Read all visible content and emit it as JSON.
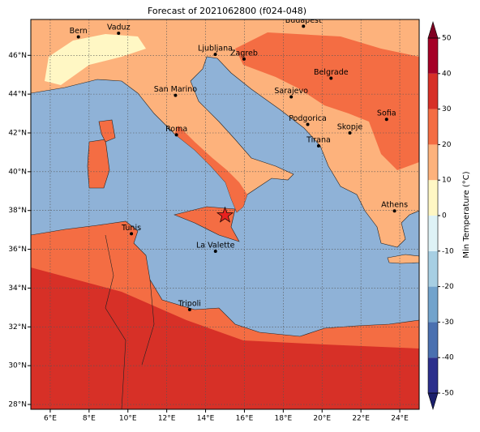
{
  "title": "Forecast of 2021062800 (f024-048)",
  "map": {
    "lon_range": [
      5,
      25
    ],
    "lat_range": [
      27.75,
      47.85
    ],
    "lon_ticks": [
      {
        "value": 6,
        "label": "6°E"
      },
      {
        "value": 8,
        "label": "8°E"
      },
      {
        "value": 10,
        "label": "10°E"
      },
      {
        "value": 12,
        "label": "12°E"
      },
      {
        "value": 14,
        "label": "14°E"
      },
      {
        "value": 16,
        "label": "16°E"
      },
      {
        "value": 18,
        "label": "18°E"
      },
      {
        "value": 20,
        "label": "20°E"
      },
      {
        "value": 22,
        "label": "22°E"
      },
      {
        "value": 24,
        "label": "24°E"
      }
    ],
    "lat_ticks": [
      {
        "value": 28,
        "label": "28°N"
      },
      {
        "value": 30,
        "label": "30°N"
      },
      {
        "value": 32,
        "label": "32°N"
      },
      {
        "value": 34,
        "label": "34°N"
      },
      {
        "value": 36,
        "label": "36°N"
      },
      {
        "value": 38,
        "label": "38°N"
      },
      {
        "value": 40,
        "label": "40°N"
      },
      {
        "value": 42,
        "label": "42°N"
      },
      {
        "value": 44,
        "label": "44°N"
      },
      {
        "value": 46,
        "label": "46°N"
      }
    ],
    "cities": [
      {
        "name": "Bern",
        "lon": 7.45,
        "lat": 46.95
      },
      {
        "name": "Vaduz",
        "lon": 9.52,
        "lat": 47.14
      },
      {
        "name": "Budapest",
        "lon": 19.04,
        "lat": 47.5
      },
      {
        "name": "Ljubljana",
        "lon": 14.5,
        "lat": 46.05
      },
      {
        "name": "Zagreb",
        "lon": 15.98,
        "lat": 45.81
      },
      {
        "name": "Belgrade",
        "lon": 20.46,
        "lat": 44.82
      },
      {
        "name": "San Marino",
        "lon": 12.45,
        "lat": 43.94
      },
      {
        "name": "Sarajevo",
        "lon": 18.41,
        "lat": 43.86
      },
      {
        "name": "Sofia",
        "lon": 23.32,
        "lat": 42.7
      },
      {
        "name": "Podgorica",
        "lon": 19.26,
        "lat": 42.44
      },
      {
        "name": "Skopje",
        "lon": 21.43,
        "lat": 42.0
      },
      {
        "name": "Roma",
        "lon": 12.5,
        "lat": 41.9
      },
      {
        "name": "Tirana",
        "lon": 19.82,
        "lat": 41.33
      },
      {
        "name": "Athens",
        "lon": 23.73,
        "lat": 37.98
      },
      {
        "name": "Tunis",
        "lon": 10.18,
        "lat": 36.8
      },
      {
        "name": "La Valette",
        "lon": 14.51,
        "lat": 35.9
      },
      {
        "name": "Tripoli",
        "lon": 13.18,
        "lat": 32.89
      }
    ],
    "marker": {
      "lon": 15.0,
      "lat": 37.75,
      "color": "#e8211f"
    }
  },
  "colorbar": {
    "label": "Min Temperature (°C)",
    "ticks": [
      -50,
      -40,
      -30,
      -20,
      -10,
      0,
      10,
      20,
      30,
      40,
      50
    ],
    "colors": [
      "#2c2f8c",
      "#4a70b0",
      "#72a3cc",
      "#a7cfe3",
      "#def2f6",
      "#fff7c4",
      "#fdb27c",
      "#f46d43",
      "#d73027",
      "#a50026"
    ],
    "extend_colors": [
      "#1b1f6b",
      "#7f0022"
    ]
  }
}
